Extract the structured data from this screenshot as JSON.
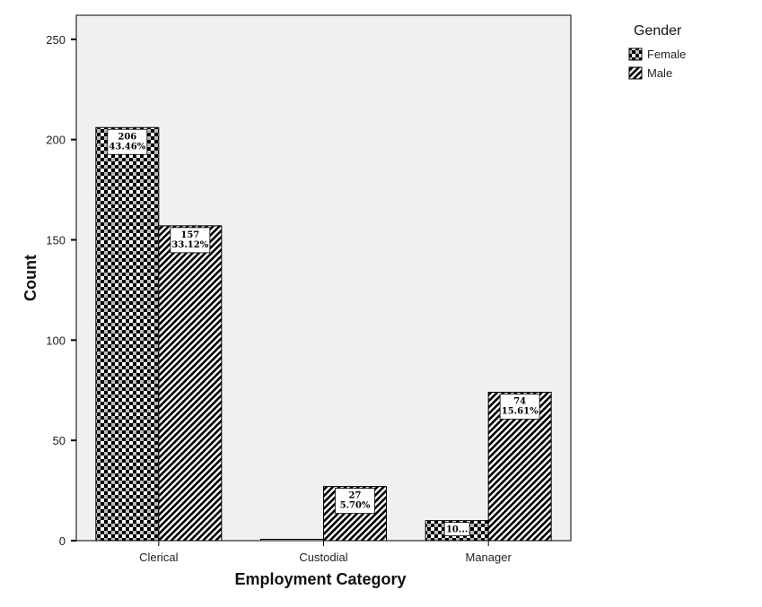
{
  "chart_data": {
    "type": "bar",
    "title": "",
    "xlabel": "Employment Category",
    "ylabel": "Count",
    "categories": [
      "Clerical",
      "Custodial",
      "Manager"
    ],
    "ylim": [
      0,
      262
    ],
    "yticks": [
      0,
      50,
      100,
      150,
      200,
      250
    ],
    "grid": false,
    "legend": {
      "title": "Gender",
      "position": "top-right"
    },
    "series": [
      {
        "name": "Female",
        "pattern": "checkerboard",
        "values": [
          206,
          0,
          10
        ],
        "labels": [
          [
            "206",
            "43.46%"
          ],
          null,
          [
            "10..."
          ]
        ]
      },
      {
        "name": "Male",
        "pattern": "diagonal-hatch",
        "values": [
          157,
          27,
          74
        ],
        "labels": [
          [
            "157",
            "33.12%"
          ],
          [
            "27",
            "5.70%"
          ],
          [
            "74",
            "15.61%"
          ]
        ]
      }
    ],
    "colors": {
      "plot_background": "#f0f0f0",
      "bar_stroke": "#000000",
      "axis": "#000000"
    }
  }
}
